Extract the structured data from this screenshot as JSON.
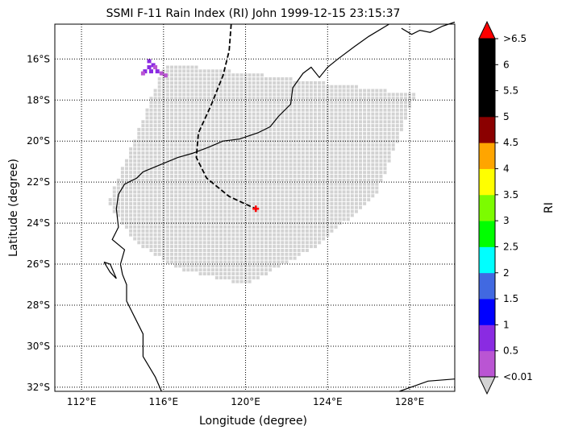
{
  "chart_data": {
    "type": "scatter",
    "title": "SSMI F-11 Rain Index (RI) John 1999-12-15 23:15:37",
    "xlabel": "Longitude (degree)",
    "ylabel": "Latitude (degree)",
    "xlim": [
      110.7,
      130.2
    ],
    "ylim": [
      -32.2,
      -14.3
    ],
    "grid": true,
    "x_ticks": [
      {
        "value": 112,
        "label": "112°E"
      },
      {
        "value": 116,
        "label": "116°E"
      },
      {
        "value": 120,
        "label": "120°E"
      },
      {
        "value": 124,
        "label": "124°E"
      },
      {
        "value": 128,
        "label": "128°E"
      }
    ],
    "y_ticks": [
      {
        "value": -16,
        "label": "16°S"
      },
      {
        "value": -18,
        "label": "18°S"
      },
      {
        "value": -20,
        "label": "20°S"
      },
      {
        "value": -22,
        "label": "22°S"
      },
      {
        "value": -24,
        "label": "24°S"
      },
      {
        "value": -26,
        "label": "26°S"
      },
      {
        "value": -28,
        "label": "28°S"
      },
      {
        "value": -30,
        "label": "30°S"
      },
      {
        "value": -32,
        "label": "32°S"
      }
    ],
    "swath": {
      "color": "#d3d3d3",
      "outline": [
        [
          113.3,
          -23.0
        ],
        [
          116.1,
          -16.2
        ],
        [
          128.3,
          -17.7
        ],
        [
          126.4,
          -22.6
        ],
        [
          123.4,
          -25.2
        ],
        [
          120.0,
          -27.0
        ],
        [
          116.6,
          -26.2
        ],
        [
          114.6,
          -24.9
        ]
      ]
    },
    "rain_points": [
      {
        "lon": 115.3,
        "lat": -16.1,
        "color": "#8a2be2"
      },
      {
        "lon": 115.5,
        "lat": -16.3,
        "color": "#8a2be2"
      },
      {
        "lon": 115.3,
        "lat": -16.4,
        "color": "#8a2be2"
      },
      {
        "lon": 115.6,
        "lat": -16.4,
        "color": "#ba55d3"
      },
      {
        "lon": 115.1,
        "lat": -16.6,
        "color": "#8a2be2"
      },
      {
        "lon": 115.4,
        "lat": -16.6,
        "color": "#8a2be2"
      },
      {
        "lon": 115.7,
        "lat": -16.6,
        "color": "#8a2be2"
      },
      {
        "lon": 115.9,
        "lat": -16.7,
        "color": "#ba55d3"
      },
      {
        "lon": 116.1,
        "lat": -16.8,
        "color": "#ba55d3"
      },
      {
        "lon": 115.0,
        "lat": -16.7,
        "color": "#ba55d3"
      }
    ],
    "track": {
      "color": "#000000",
      "style": "dashed",
      "points": [
        [
          119.3,
          -14.3
        ],
        [
          119.2,
          -15.6
        ],
        [
          118.9,
          -16.8
        ],
        [
          118.3,
          -18.3
        ],
        [
          117.7,
          -19.6
        ],
        [
          117.6,
          -20.8
        ],
        [
          118.1,
          -21.8
        ],
        [
          119.2,
          -22.7
        ],
        [
          120.5,
          -23.3
        ]
      ]
    },
    "storm_position": {
      "lon": 120.5,
      "lat": -23.3,
      "color": "#ff0000"
    },
    "coastlines": [
      [
        [
          115.0,
          -21.5
        ],
        [
          116.7,
          -20.8
        ],
        [
          117.4,
          -20.6
        ],
        [
          118.2,
          -20.3
        ],
        [
          118.9,
          -20.0
        ],
        [
          119.7,
          -19.9
        ],
        [
          120.6,
          -19.6
        ],
        [
          121.2,
          -19.3
        ],
        [
          121.6,
          -18.8
        ],
        [
          122.2,
          -18.2
        ],
        [
          122.3,
          -17.4
        ],
        [
          122.8,
          -16.7
        ],
        [
          123.2,
          -16.4
        ],
        [
          123.6,
          -16.9
        ],
        [
          124.0,
          -16.4
        ],
        [
          124.5,
          -16.0
        ],
        [
          125.3,
          -15.4
        ],
        [
          126.0,
          -14.9
        ],
        [
          127.0,
          -14.3
        ]
      ],
      [
        [
          115.0,
          -21.5
        ],
        [
          114.7,
          -21.8
        ],
        [
          114.1,
          -22.1
        ],
        [
          113.8,
          -22.6
        ],
        [
          113.7,
          -23.3
        ],
        [
          113.8,
          -24.2
        ],
        [
          113.5,
          -24.8
        ],
        [
          114.1,
          -25.3
        ],
        [
          113.9,
          -26.0
        ],
        [
          114.0,
          -26.5
        ],
        [
          114.2,
          -27.0
        ],
        [
          114.2,
          -27.8
        ],
        [
          114.6,
          -28.6
        ],
        [
          115.0,
          -29.4
        ],
        [
          115.0,
          -30.5
        ],
        [
          115.6,
          -31.5
        ],
        [
          115.9,
          -32.2
        ]
      ],
      [
        [
          113.1,
          -25.9
        ],
        [
          113.4,
          -26.4
        ],
        [
          113.7,
          -26.7
        ],
        [
          113.4,
          -26.0
        ],
        [
          113.1,
          -25.9
        ]
      ],
      [
        [
          127.5,
          -32.2
        ],
        [
          128.9,
          -31.7
        ],
        [
          130.2,
          -31.6
        ]
      ],
      [
        [
          127.6,
          -14.5
        ],
        [
          128.1,
          -14.8
        ],
        [
          128.5,
          -14.6
        ],
        [
          129.0,
          -14.7
        ],
        [
          129.6,
          -14.4
        ],
        [
          130.2,
          -14.2
        ]
      ]
    ],
    "colorbar": {
      "label": "RI",
      "ticks": [
        "<0.01",
        "0.5",
        "1",
        "1.5",
        "2",
        "2.5",
        "3",
        "3.5",
        "4",
        "4.5",
        "5",
        "5.5",
        "6",
        ">6.5"
      ],
      "colors": [
        "#ba55d3",
        "#8a2be2",
        "#0000ff",
        "#4169e1",
        "#00ffff",
        "#00ff00",
        "#7cfc00",
        "#ffff00",
        "#ffa500",
        "#8b0000",
        "#000000",
        "#000000",
        "#000000"
      ],
      "under_color": "#d3d3d3",
      "over_color": "#ff0000"
    }
  }
}
